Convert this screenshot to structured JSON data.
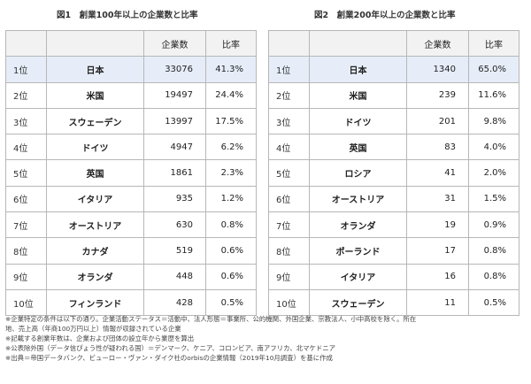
{
  "figure1": {
    "title": "図1　創業100年以上の企業数と比率",
    "headers": [
      "",
      "",
      "企業数",
      "比率"
    ],
    "rows": [
      {
        "rank": "1位",
        "country": "日本",
        "count": "33076",
        "ratio": "41.3%"
      },
      {
        "rank": "2位",
        "country": "米国",
        "count": "19497",
        "ratio": "24.4%"
      },
      {
        "rank": "3位",
        "country": "スウェーデン",
        "count": "13997",
        "ratio": "17.5%"
      },
      {
        "rank": "4位",
        "country": "ドイツ",
        "count": "4947",
        "ratio": "6.2%"
      },
      {
        "rank": "5位",
        "country": "英国",
        "count": "1861",
        "ratio": "2.3%"
      },
      {
        "rank": "6位",
        "country": "イタリア",
        "count": "935",
        "ratio": "1.2%"
      },
      {
        "rank": "7位",
        "country": "オーストリア",
        "count": "630",
        "ratio": "0.8%"
      },
      {
        "rank": "8位",
        "country": "カナダ",
        "count": "519",
        "ratio": "0.6%"
      },
      {
        "rank": "9位",
        "country": "オランダ",
        "count": "448",
        "ratio": "0.6%"
      },
      {
        "rank": "10位",
        "country": "フィンランド",
        "count": "428",
        "ratio": "0.5%"
      }
    ]
  },
  "figure2": {
    "title": "図2　創業200年以上の企業数と比率",
    "headers": [
      "",
      "",
      "企業数",
      "比率"
    ],
    "rows": [
      {
        "rank": "1位",
        "country": "日本",
        "count": "1340",
        "ratio": "65.0%"
      },
      {
        "rank": "2位",
        "country": "米国",
        "count": "239",
        "ratio": "11.6%"
      },
      {
        "rank": "3位",
        "country": "ドイツ",
        "count": "201",
        "ratio": "9.8%"
      },
      {
        "rank": "4位",
        "country": "英国",
        "count": "83",
        "ratio": "4.0%"
      },
      {
        "rank": "5位",
        "country": "ロシア",
        "count": "41",
        "ratio": "2.0%"
      },
      {
        "rank": "6位",
        "country": "オーストリア",
        "count": "31",
        "ratio": "1.5%"
      },
      {
        "rank": "7位",
        "country": "オランダ",
        "count": "19",
        "ratio": "0.9%"
      },
      {
        "rank": "8位",
        "country": "ポーランド",
        "count": "17",
        "ratio": "0.8%"
      },
      {
        "rank": "9位",
        "country": "イタリア",
        "count": "16",
        "ratio": "0.8%"
      },
      {
        "rank": "10位",
        "country": "スウェーデン",
        "count": "11",
        "ratio": "0.5%"
      }
    ]
  },
  "notes": [
    "※企業特定の条件は以下の通り。企業活動ステータス＝活動中、法人形態＝事業所、公的機関、外国企業、宗教法人、小中高校を除く。所在",
    "地、売上高（年商100万円以上）情報が収録されている企業",
    "※記載する創業年数は、企業および団体の設立年から業歴を算出",
    "※公表除外国（データ信ぴょう性が疑われる国）＝デンマーク、ケニア、コロンビア、南アフリカ、北マケドニア",
    "※出典＝帝国データバンク、ビューロー・ヴァン・ダイク社のorbisの企業情報（2019年10月調査）を基に作成"
  ],
  "colors": {
    "highlight_row": "#e6edf8",
    "header_bg": "#f2f2f2",
    "border": "#b7b7b7"
  }
}
